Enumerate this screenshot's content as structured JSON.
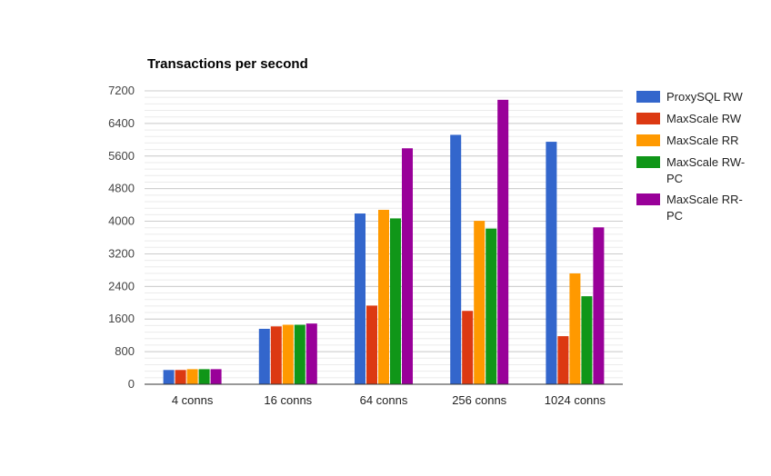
{
  "chart_data": {
    "type": "bar",
    "title": "Transactions per second",
    "xlabel": "",
    "ylabel": "",
    "categories": [
      "4 conns",
      "16 conns",
      "64 conns",
      "256 conns",
      "1024 conns"
    ],
    "series": [
      {
        "name": "ProxySQL RW",
        "color": "#3366cc",
        "values": [
          350,
          1360,
          4190,
          6120,
          5950
        ]
      },
      {
        "name": "MaxScale RW",
        "color": "#dc3912",
        "values": [
          350,
          1420,
          1930,
          1800,
          1180
        ]
      },
      {
        "name": "MaxScale RR",
        "color": "#ff9900",
        "values": [
          370,
          1460,
          4280,
          4010,
          2720
        ]
      },
      {
        "name": "MaxScale RW-PC",
        "color": "#109618",
        "values": [
          370,
          1460,
          4070,
          3820,
          2160
        ]
      },
      {
        "name": "MaxScale RR-PC",
        "color": "#990099",
        "values": [
          370,
          1490,
          5790,
          6980,
          3850
        ]
      }
    ],
    "yticks": [
      0,
      800,
      1600,
      2400,
      3200,
      4000,
      4800,
      5600,
      6400,
      7200
    ],
    "ylim": [
      0,
      7200
    ],
    "grid": true,
    "legend_position": "right"
  }
}
